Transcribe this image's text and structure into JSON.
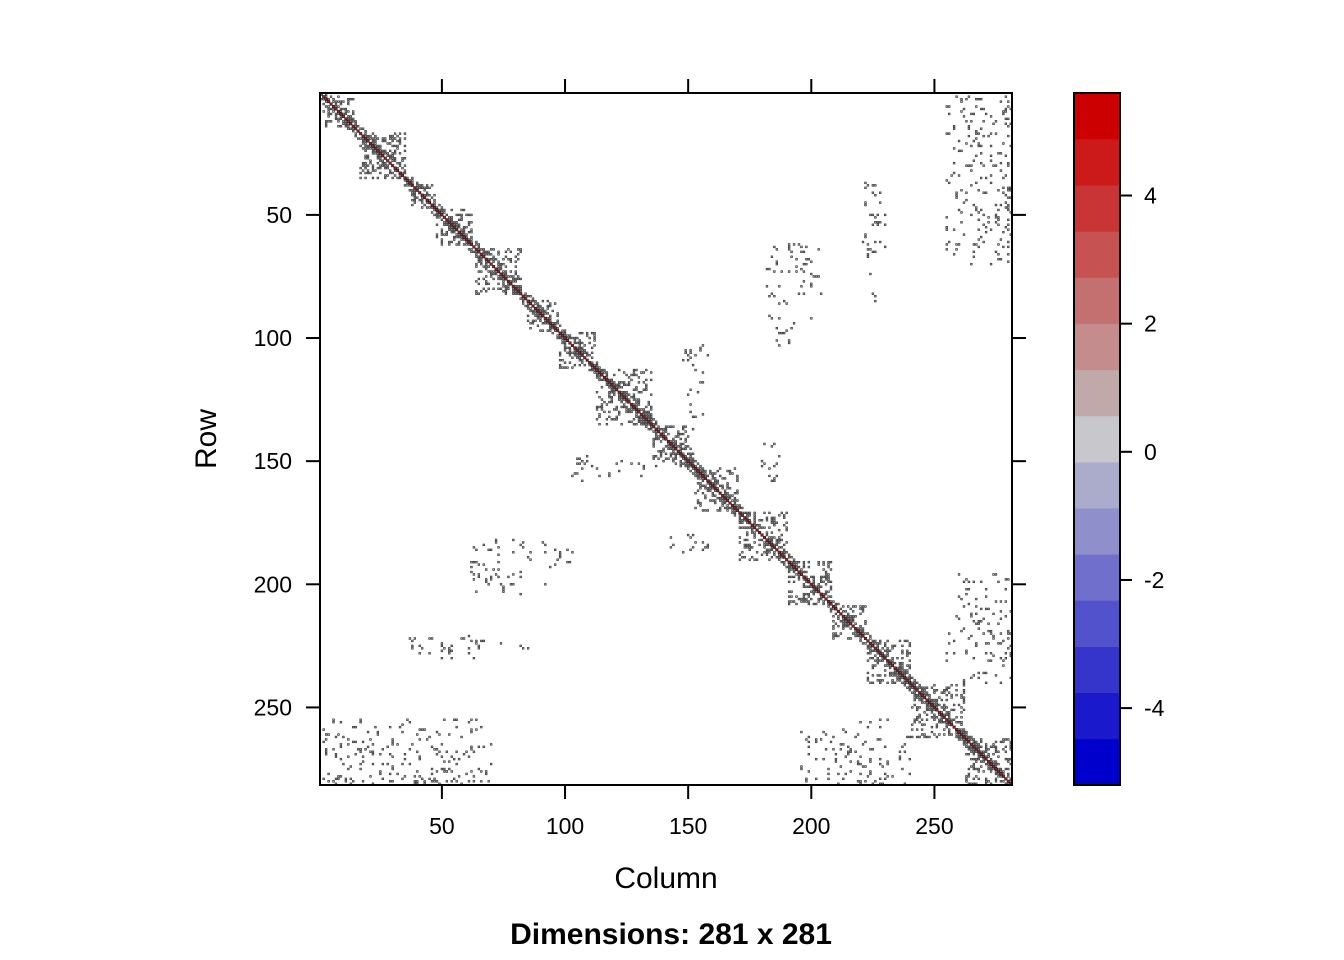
{
  "chart_data": {
    "type": "heatmap",
    "subtype": "sparse-matrix-image",
    "title": "Dimensions: 281 x 281",
    "xlabel": "Column",
    "ylabel": "Row",
    "dimensions": [
      281,
      281
    ],
    "xlim": [
      0.5,
      281.5
    ],
    "ylim": [
      281.5,
      0.5
    ],
    "x_ticks": [
      50,
      100,
      150,
      200,
      250
    ],
    "y_ticks": [
      50,
      100,
      150,
      200,
      250
    ],
    "colorbar": {
      "range": [
        -5.2,
        5.6
      ],
      "ticks": [
        -4,
        -2,
        0,
        2,
        4
      ],
      "colors": [
        "#0000CC",
        "#1A1ACC",
        "#3535CC",
        "#5252CC",
        "#7070CC",
        "#8F8FCC",
        "#ABABCC",
        "#C8C8CC",
        "#C2A9A9",
        "#C48C8C",
        "#C57070",
        "#C75252",
        "#C93535",
        "#CC1A1A",
        "#CC0000"
      ],
      "placement": "right"
    },
    "structure": {
      "diagonal": "all 281 diagonal entries nonzero, drawn dark red (positive)",
      "dense_blocks": [
        [
          2,
          14
        ],
        [
          17,
          35
        ],
        [
          38,
          47
        ],
        [
          48,
          62
        ],
        [
          64,
          82
        ],
        [
          85,
          97
        ],
        [
          98,
          112
        ],
        [
          113,
          135
        ],
        [
          136,
          152
        ],
        [
          153,
          170
        ],
        [
          171,
          190
        ],
        [
          191,
          208
        ],
        [
          209,
          222
        ],
        [
          223,
          240
        ],
        [
          241,
          262
        ],
        [
          263,
          281
        ]
      ],
      "offdiag_clusters": [
        {
          "rows": [
            100,
            115
          ],
          "cols": [
            148,
            158
          ]
        },
        {
          "rows": [
            150,
            156
          ],
          "cols": [
            104,
            132
          ]
        },
        {
          "rows": [
            143,
            158
          ],
          "cols": [
            180,
            192
          ]
        },
        {
          "rows": [
            182,
            200
          ],
          "cols": [
            62,
            92
          ]
        },
        {
          "rows": [
            186,
            193
          ],
          "cols": [
            94,
            100
          ]
        },
        {
          "rows": [
            220,
            230
          ],
          "cols": [
            36,
            66
          ]
        },
        {
          "rows": [
            97,
            103
          ],
          "cols": [
            186,
            195
          ]
        },
        {
          "rows": [
            64,
            84
          ],
          "cols": [
            194,
            204
          ]
        },
        {
          "rows": [
            35,
            86
          ],
          "cols": [
            222,
            226
          ]
        },
        {
          "rows": [
            3,
            70
          ],
          "cols": [
            263,
            281
          ]
        },
        {
          "rows": [
            255,
            281
          ],
          "cols": [
            2,
            66
          ]
        },
        {
          "rows": [
            255,
            281
          ],
          "cols": [
            212,
            232
          ]
        },
        {
          "rows": [
            196,
            240
          ],
          "cols": [
            260,
            281
          ]
        }
      ],
      "marker": "small open squares (grey fill, dark border) for each nonzero"
    }
  }
}
